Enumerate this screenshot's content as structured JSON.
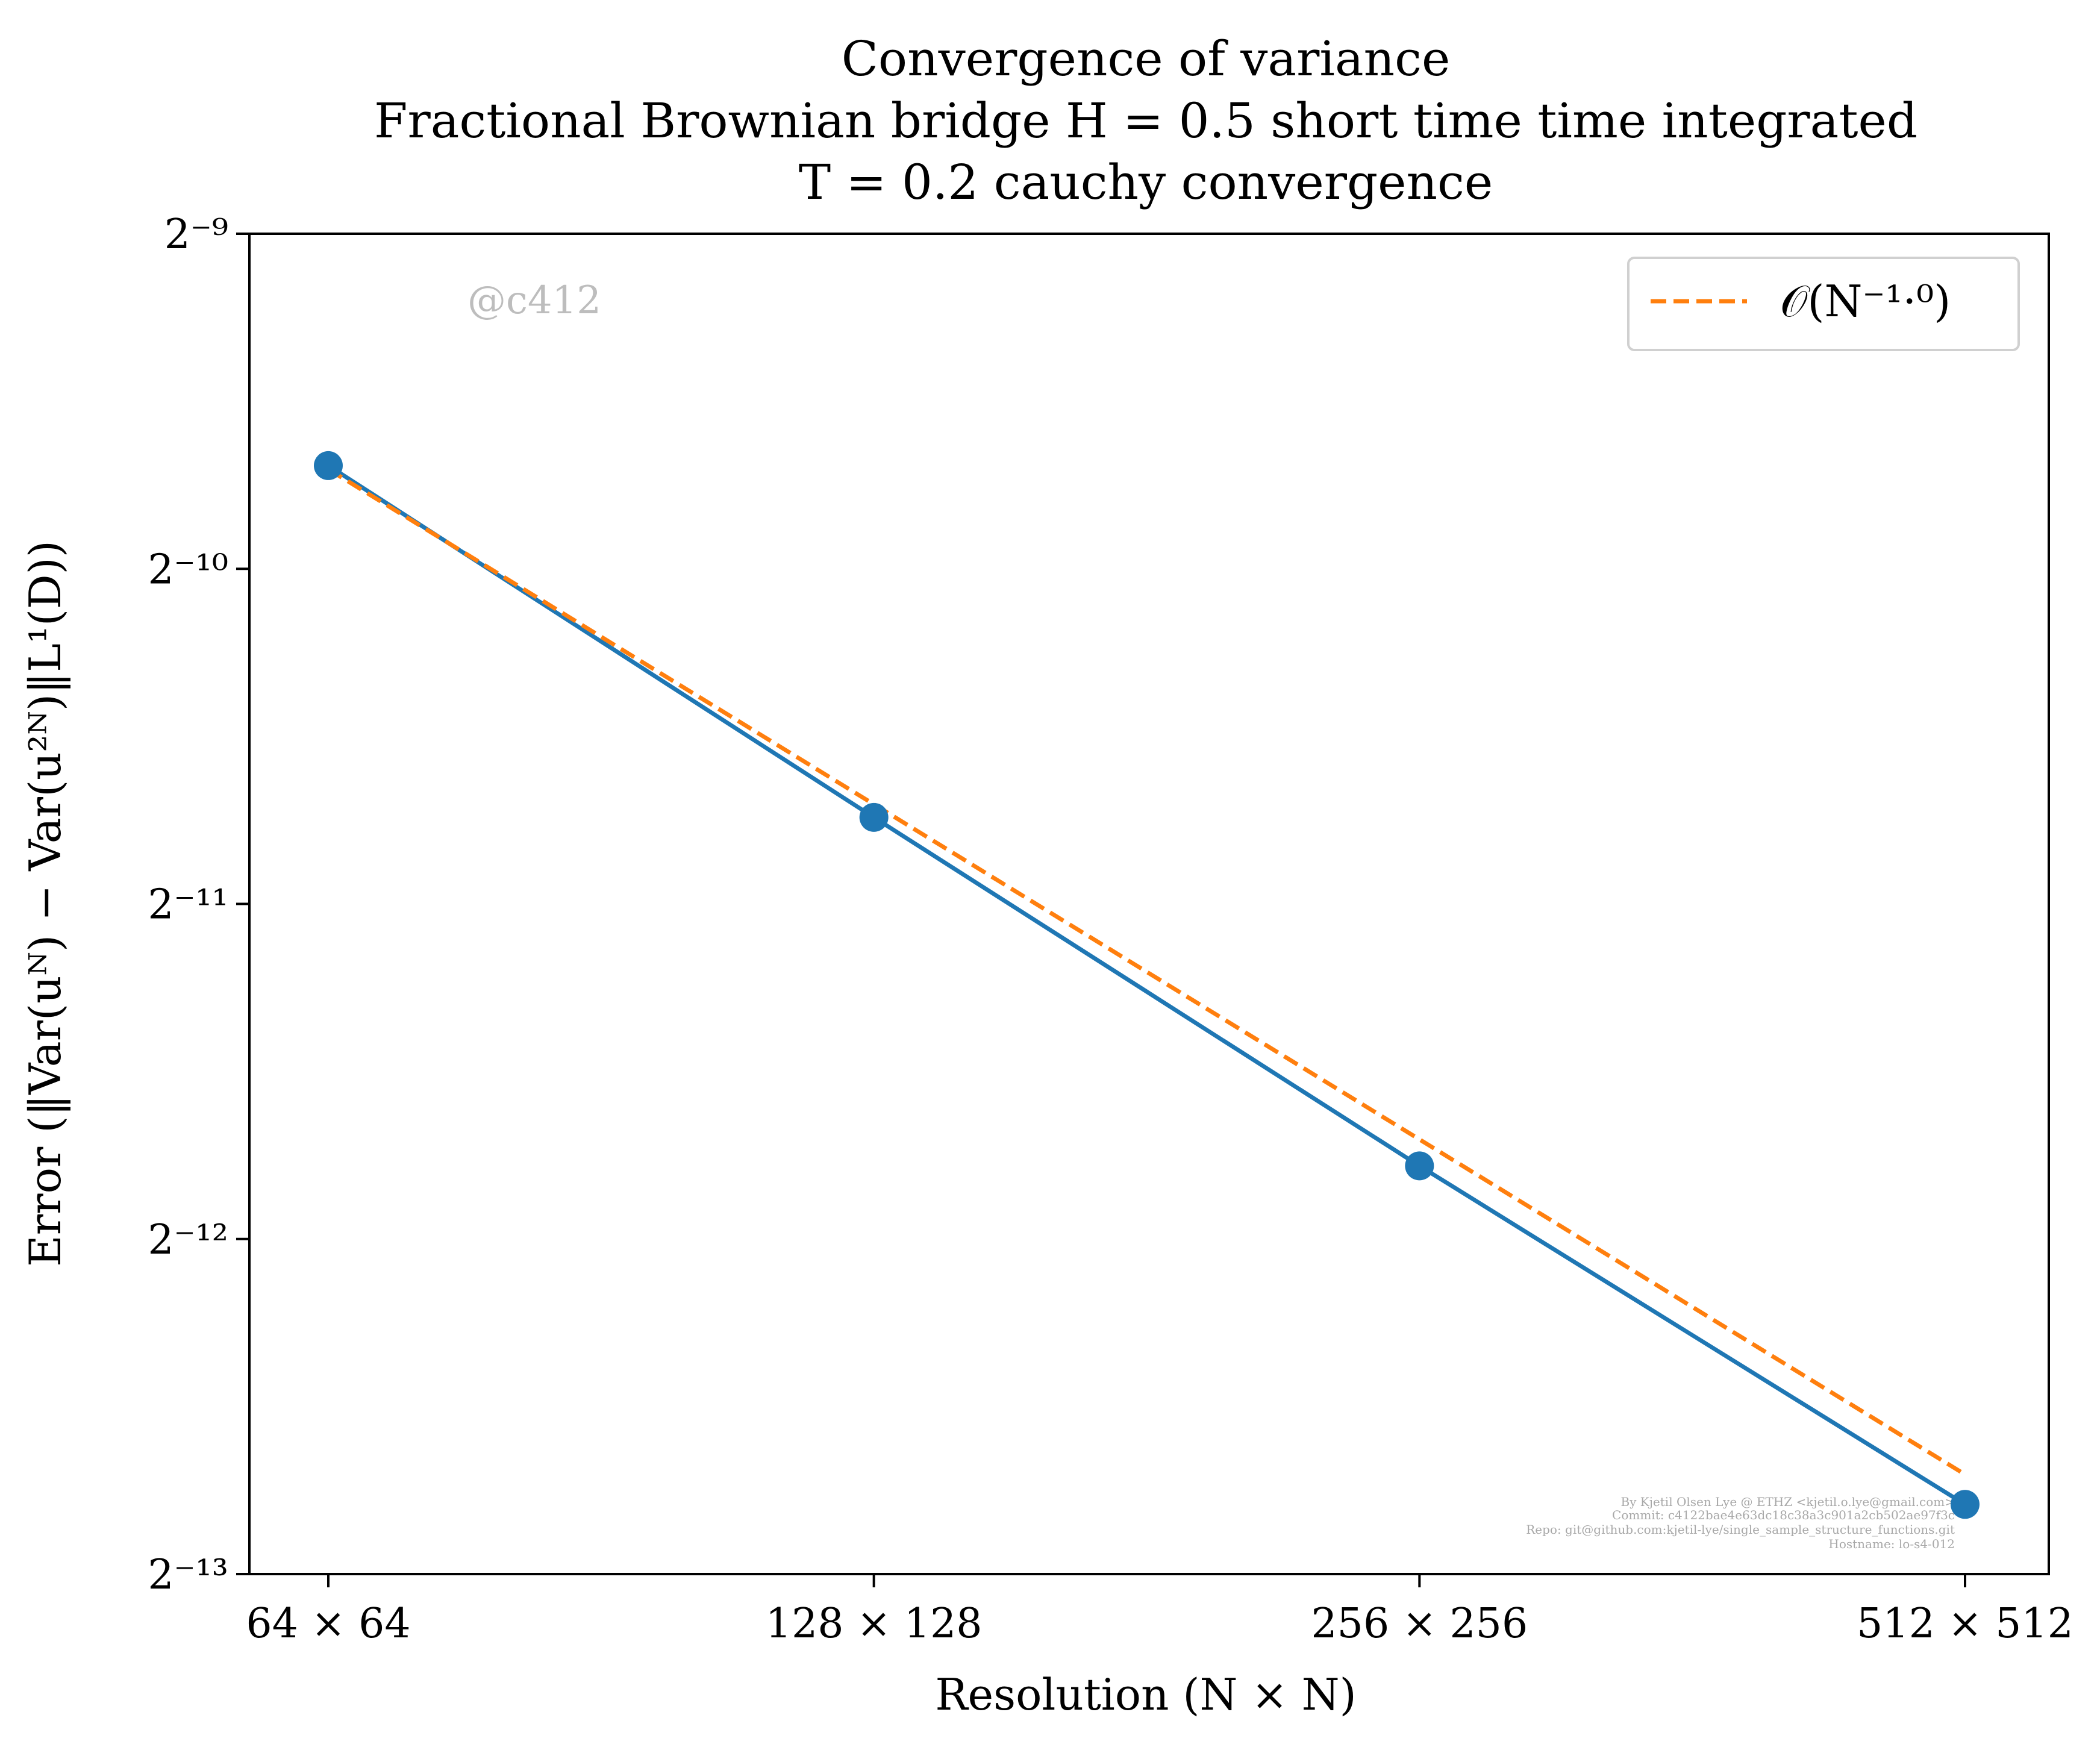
{
  "chart_data": {
    "type": "line",
    "title_lines": [
      "Convergence of variance",
      "Fractional Brownian bridge H = 0.5 short time time integrated",
      "T = 0.2 cauchy convergence"
    ],
    "xlabel": "Resolution (N × N)",
    "ylabel": "Error (‖Var(uᴺ) − Var(u²ᴺ)‖L¹(D))",
    "x_scale": "log2",
    "y_scale": "log2",
    "categories": [
      "64 × 64",
      "128 × 128",
      "256 × 256",
      "512 × 512"
    ],
    "x": [
      64,
      128,
      256,
      512
    ],
    "y_ticks": [
      {
        "exp": -9,
        "label": "2⁻⁹"
      },
      {
        "exp": -10,
        "label": "2⁻¹⁰"
      },
      {
        "exp": -11,
        "label": "2⁻¹¹"
      },
      {
        "exp": -12,
        "label": "2⁻¹²"
      },
      {
        "exp": -13,
        "label": "2⁻¹³"
      }
    ],
    "ylim": [
      0.0001220703125,
      0.001953125
    ],
    "series": [
      {
        "values": [
          0.001209,
          0.000584,
          0.000284,
          0.000141
        ],
        "color": "#1f77b4",
        "style": "solid",
        "marker": "circle"
      },
      {
        "name": "𝒪(N⁻¹·⁰)",
        "values": [
          0.0012,
          0.0006,
          0.0003,
          0.00015
        ],
        "color": "#ff7f0e",
        "style": "dashed"
      }
    ],
    "legend": {
      "position": "top-right",
      "entry": "𝒪(N⁻¹·⁰)"
    },
    "grid": false,
    "watermark": "@c412",
    "footer_lines": [
      "By Kjetil Olsen Lye @ ETHZ <kjetil.o.lye@gmail.com>",
      "Commit: c4122bae4e63dc18c38a3c901a2cb502ae97f3c",
      "Repo: git@github.com:kjetil-lye/single_sample_structure_functions.git",
      "Hostname: lo-s4-012"
    ]
  }
}
